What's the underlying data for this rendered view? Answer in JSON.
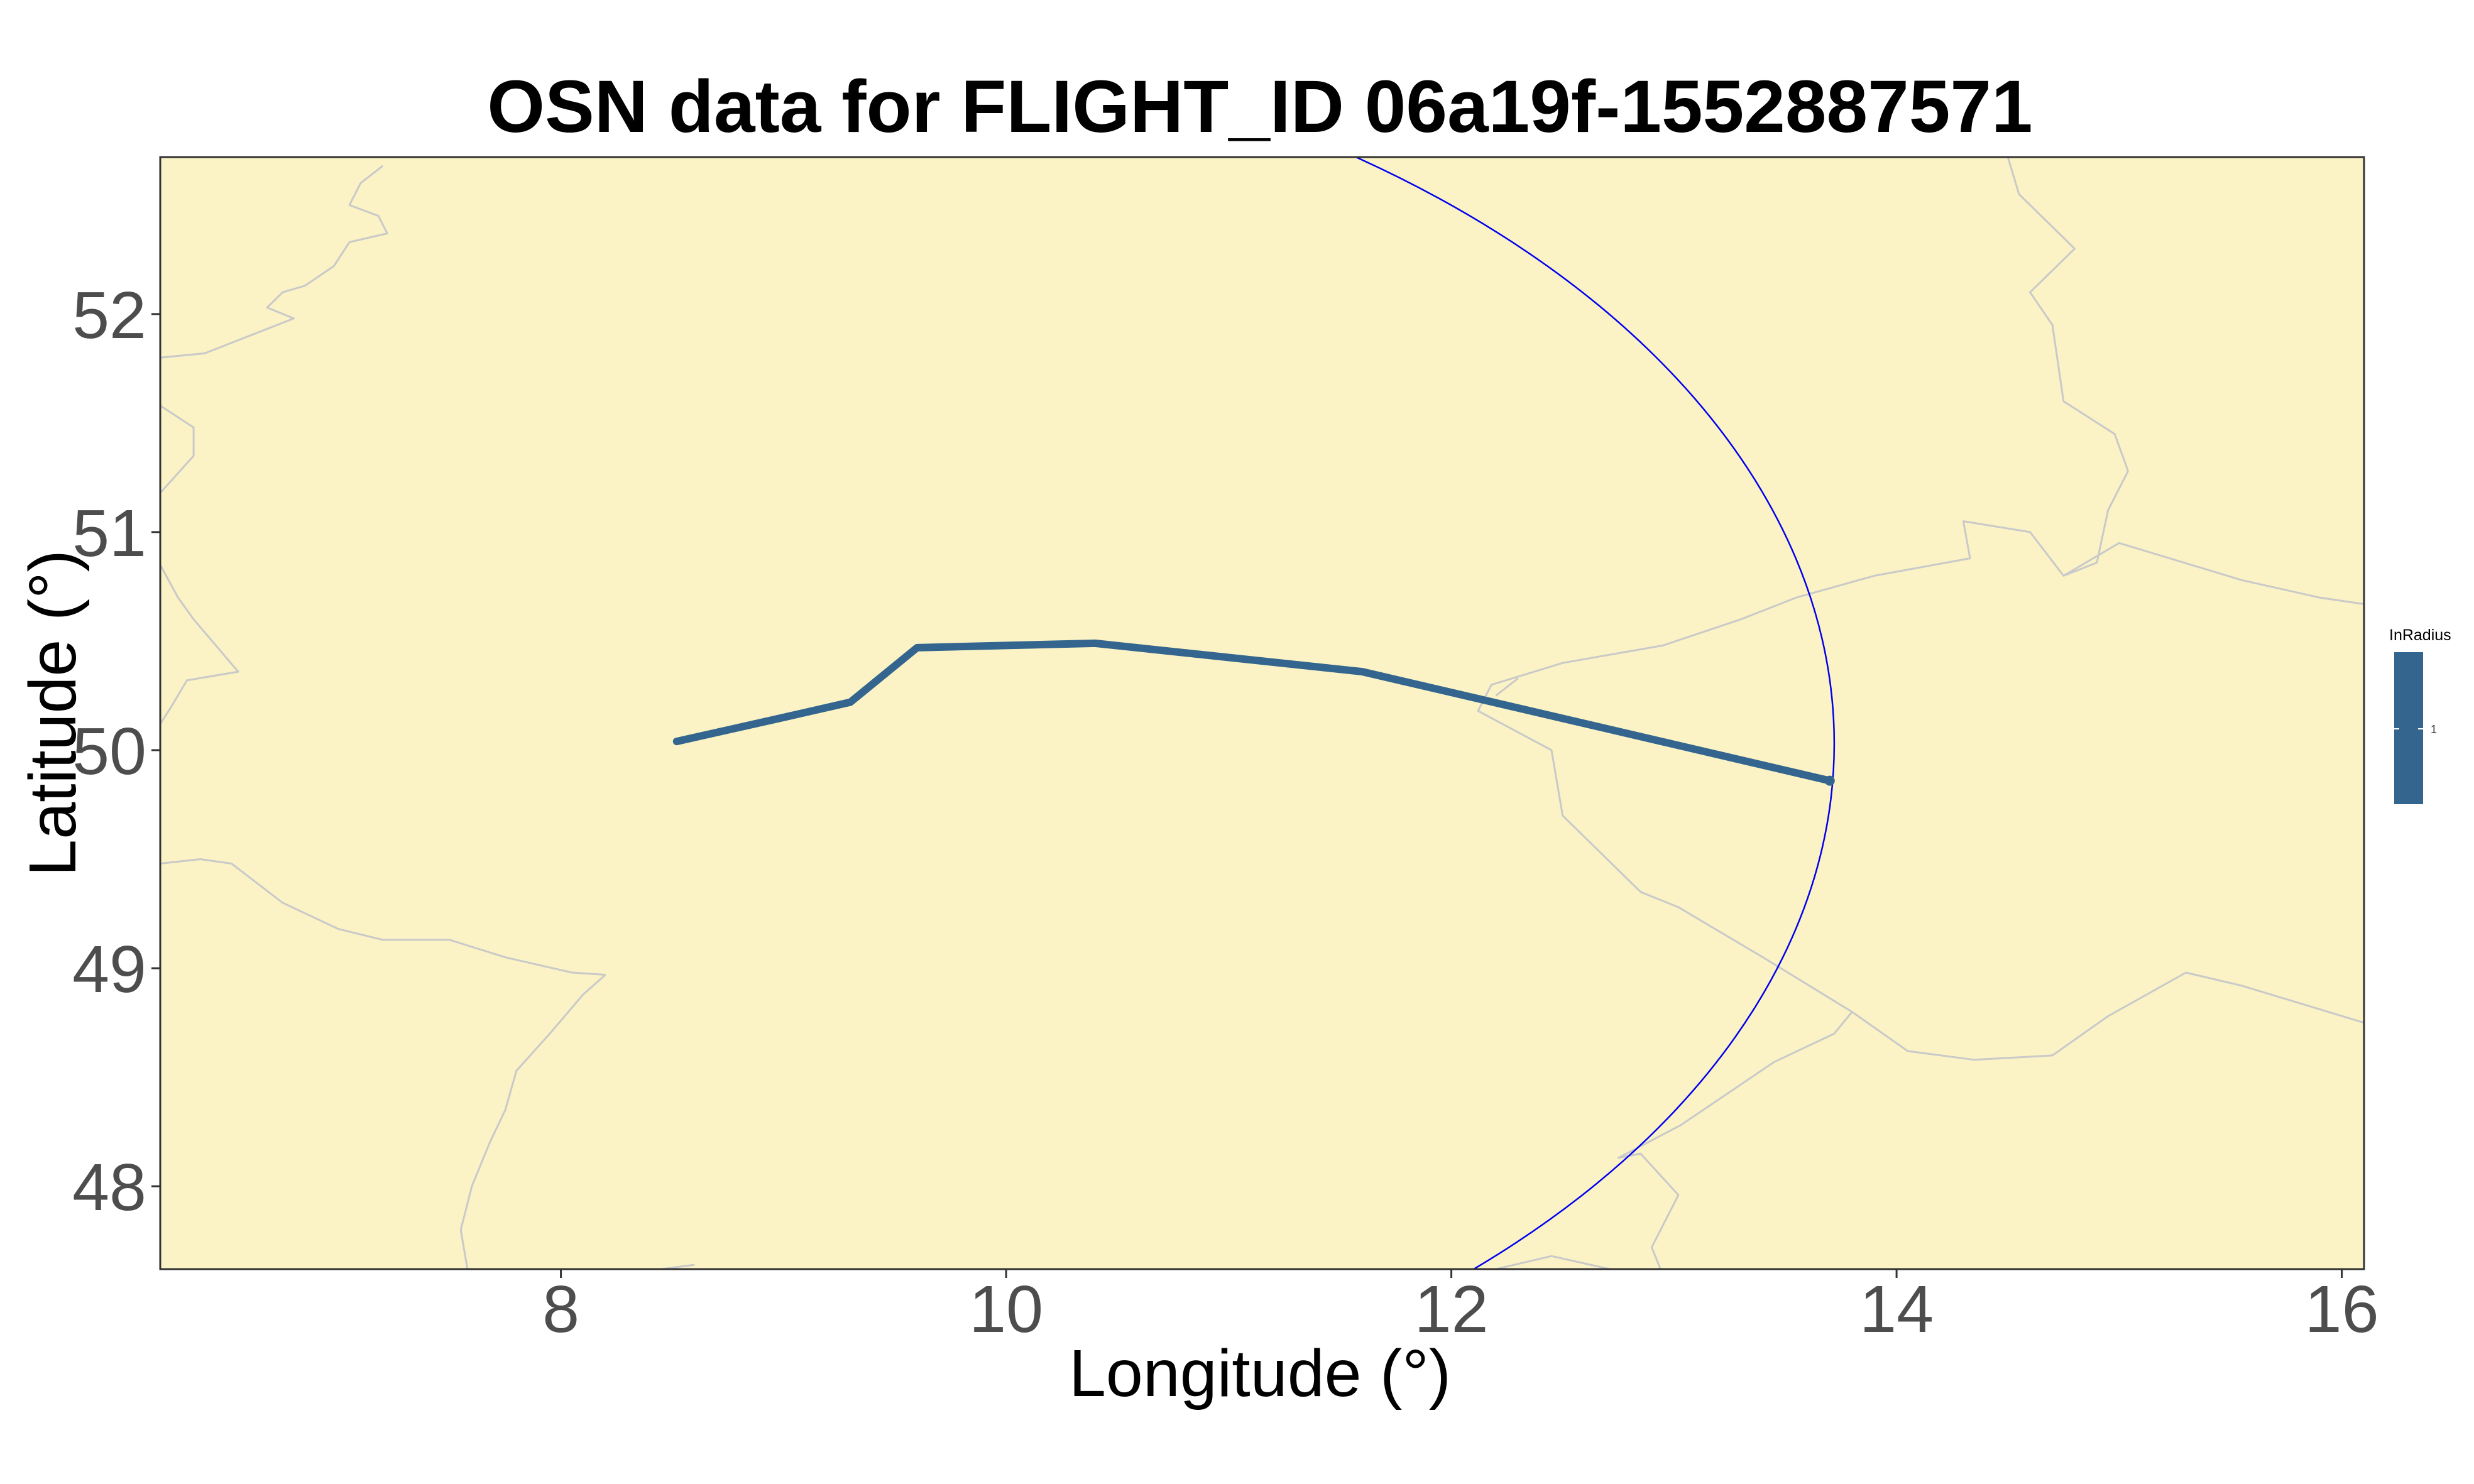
{
  "title": "OSN data for FLIGHT_ID 06a19f-1552887571",
  "x_axis": {
    "label": "Longitude (°)",
    "range": [
      6.2,
      16.1
    ],
    "ticks": [
      8,
      10,
      12,
      14,
      16
    ],
    "tick_labels": [
      "8",
      "10",
      "12",
      "14",
      "16"
    ]
  },
  "y_axis": {
    "label": "Latitude (°)",
    "range": [
      47.62,
      52.72
    ],
    "ticks": [
      48,
      49,
      50,
      51,
      52
    ],
    "tick_labels": [
      "48",
      "49",
      "50",
      "51",
      "52"
    ]
  },
  "legend": {
    "title": "InRadius",
    "tick_label": "1",
    "color": "#33658f",
    "placement": "right"
  },
  "colors": {
    "land": "#fbf3c5",
    "borders": "#c9c9c9",
    "track": "#33658f",
    "radius_circle": "#0000ee",
    "panel_border": "#333333"
  },
  "radius_circle": {
    "center_lon": 8.57,
    "center_lat": 50.03,
    "radius_lon_deg": 5.15,
    "radius_lat_deg": 3.31
  },
  "borders": [
    [
      [
        7.2,
        52.68
      ],
      [
        7.1,
        52.6
      ],
      [
        7.05,
        52.5
      ],
      [
        7.18,
        52.45
      ],
      [
        7.22,
        52.37
      ],
      [
        7.05,
        52.33
      ],
      [
        6.98,
        52.22
      ],
      [
        6.85,
        52.13
      ],
      [
        6.75,
        52.1
      ],
      [
        6.68,
        52.03
      ],
      [
        6.8,
        51.98
      ],
      [
        6.5,
        51.86
      ],
      [
        6.4,
        51.82
      ],
      [
        6.2,
        51.8
      ]
    ],
    [
      [
        6.2,
        51.58
      ],
      [
        6.35,
        51.48
      ],
      [
        6.35,
        51.35
      ],
      [
        6.2,
        51.18
      ]
    ],
    [
      [
        6.2,
        50.85
      ],
      [
        6.28,
        50.7
      ],
      [
        6.35,
        50.6
      ],
      [
        6.45,
        50.48
      ],
      [
        6.55,
        50.36
      ],
      [
        6.32,
        50.32
      ],
      [
        6.25,
        50.2
      ],
      [
        6.2,
        50.12
      ]
    ],
    [
      [
        6.2,
        49.48
      ],
      [
        6.38,
        49.5
      ],
      [
        6.52,
        49.48
      ],
      [
        6.75,
        49.3
      ],
      [
        7.0,
        49.18
      ],
      [
        7.2,
        49.13
      ],
      [
        7.5,
        49.13
      ],
      [
        7.75,
        49.05
      ],
      [
        8.05,
        48.98
      ],
      [
        8.2,
        48.97
      ]
    ],
    [
      [
        8.2,
        48.97
      ],
      [
        8.1,
        48.88
      ],
      [
        7.95,
        48.7
      ],
      [
        7.8,
        48.53
      ],
      [
        7.75,
        48.35
      ],
      [
        7.68,
        48.2
      ],
      [
        7.6,
        48.0
      ],
      [
        7.55,
        47.8
      ],
      [
        7.58,
        47.62
      ]
    ],
    [
      [
        8.6,
        47.64
      ],
      [
        8.45,
        47.62
      ]
    ],
    [
      [
        7.58,
        47.62
      ],
      [
        7.7,
        47.58
      ],
      [
        7.95,
        47.56
      ],
      [
        8.2,
        47.6
      ],
      [
        8.45,
        47.62
      ]
    ],
    [
      [
        9.5,
        47.62
      ],
      [
        9.7,
        47.55
      ],
      [
        10.0,
        47.5
      ]
    ],
    [
      [
        10.8,
        47.62
      ],
      [
        10.97,
        47.4
      ],
      [
        11.4,
        47.45
      ],
      [
        12.2,
        47.62
      ]
    ],
    [
      [
        12.2,
        47.62
      ],
      [
        12.45,
        47.68
      ],
      [
        12.8,
        47.6
      ],
      [
        13.0,
        47.47
      ]
    ],
    [
      [
        13.0,
        47.47
      ],
      [
        12.9,
        47.72
      ],
      [
        13.02,
        47.96
      ],
      [
        12.85,
        48.15
      ],
      [
        12.75,
        48.13
      ],
      [
        13.03,
        48.28
      ],
      [
        13.45,
        48.57
      ],
      [
        13.72,
        48.7
      ],
      [
        13.8,
        48.8
      ]
    ],
    [
      [
        13.8,
        48.8
      ],
      [
        13.4,
        49.05
      ],
      [
        13.02,
        49.28
      ],
      [
        12.85,
        49.35
      ],
      [
        12.5,
        49.7
      ],
      [
        12.45,
        50.0
      ],
      [
        12.12,
        50.18
      ],
      [
        12.18,
        50.3
      ],
      [
        12.5,
        50.4
      ],
      [
        12.95,
        50.48
      ],
      [
        13.3,
        50.6
      ],
      [
        13.55,
        50.7
      ],
      [
        13.9,
        50.8
      ],
      [
        14.33,
        50.88
      ],
      [
        14.3,
        51.05
      ],
      [
        14.6,
        51.0
      ],
      [
        14.75,
        50.8
      ],
      [
        14.9,
        50.86
      ],
      [
        14.95,
        51.1
      ],
      [
        15.04,
        51.28
      ]
    ],
    [
      [
        12.2,
        50.25
      ],
      [
        12.3,
        50.33
      ]
    ],
    [
      [
        13.8,
        48.8
      ],
      [
        14.05,
        48.62
      ],
      [
        14.35,
        48.58
      ],
      [
        14.7,
        48.6
      ],
      [
        14.95,
        48.78
      ],
      [
        15.3,
        48.98
      ],
      [
        15.55,
        48.92
      ],
      [
        16.1,
        48.75
      ]
    ],
    [
      [
        15.04,
        51.28
      ],
      [
        14.98,
        51.45
      ],
      [
        14.75,
        51.6
      ],
      [
        14.7,
        51.95
      ],
      [
        14.6,
        52.1
      ],
      [
        14.8,
        52.3
      ],
      [
        14.55,
        52.55
      ],
      [
        14.5,
        52.72
      ]
    ],
    [
      [
        14.75,
        50.8
      ],
      [
        15.0,
        50.95
      ],
      [
        15.55,
        50.78
      ],
      [
        15.9,
        50.7
      ],
      [
        16.1,
        50.67
      ]
    ]
  ],
  "track": [
    [
      8.52,
      50.04
    ],
    [
      9.0,
      50.15
    ],
    [
      9.3,
      50.22
    ],
    [
      9.6,
      50.47
    ],
    [
      10.4,
      50.49
    ],
    [
      11.6,
      50.36
    ],
    [
      13.7,
      49.86
    ]
  ]
}
